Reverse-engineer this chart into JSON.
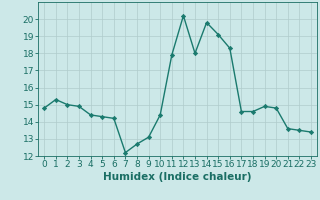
{
  "x": [
    0,
    1,
    2,
    3,
    4,
    5,
    6,
    7,
    8,
    9,
    10,
    11,
    12,
    13,
    14,
    15,
    16,
    17,
    18,
    19,
    20,
    21,
    22,
    23
  ],
  "y": [
    14.8,
    15.3,
    15.0,
    14.9,
    14.4,
    14.3,
    14.2,
    12.2,
    12.7,
    13.1,
    14.4,
    17.9,
    20.2,
    18.0,
    19.8,
    19.1,
    18.3,
    14.6,
    14.6,
    14.9,
    14.8,
    13.6,
    13.5,
    13.4
  ],
  "line_color": "#1a7a6e",
  "marker": "D",
  "marker_size": 2.2,
  "bg_color": "#cce8e8",
  "grid_color": "#b0cccc",
  "xlabel": "Humidex (Indice chaleur)",
  "ylim": [
    12,
    21
  ],
  "xlim": [
    -0.5,
    23.5
  ],
  "yticks": [
    12,
    13,
    14,
    15,
    16,
    17,
    18,
    19,
    20
  ],
  "xticks": [
    0,
    1,
    2,
    3,
    4,
    5,
    6,
    7,
    8,
    9,
    10,
    11,
    12,
    13,
    14,
    15,
    16,
    17,
    18,
    19,
    20,
    21,
    22,
    23
  ],
  "tick_color": "#1a6e64",
  "axis_color": "#1a6e64",
  "tick_fontsize": 6.5,
  "xlabel_fontsize": 7.5,
  "linewidth": 1.0
}
